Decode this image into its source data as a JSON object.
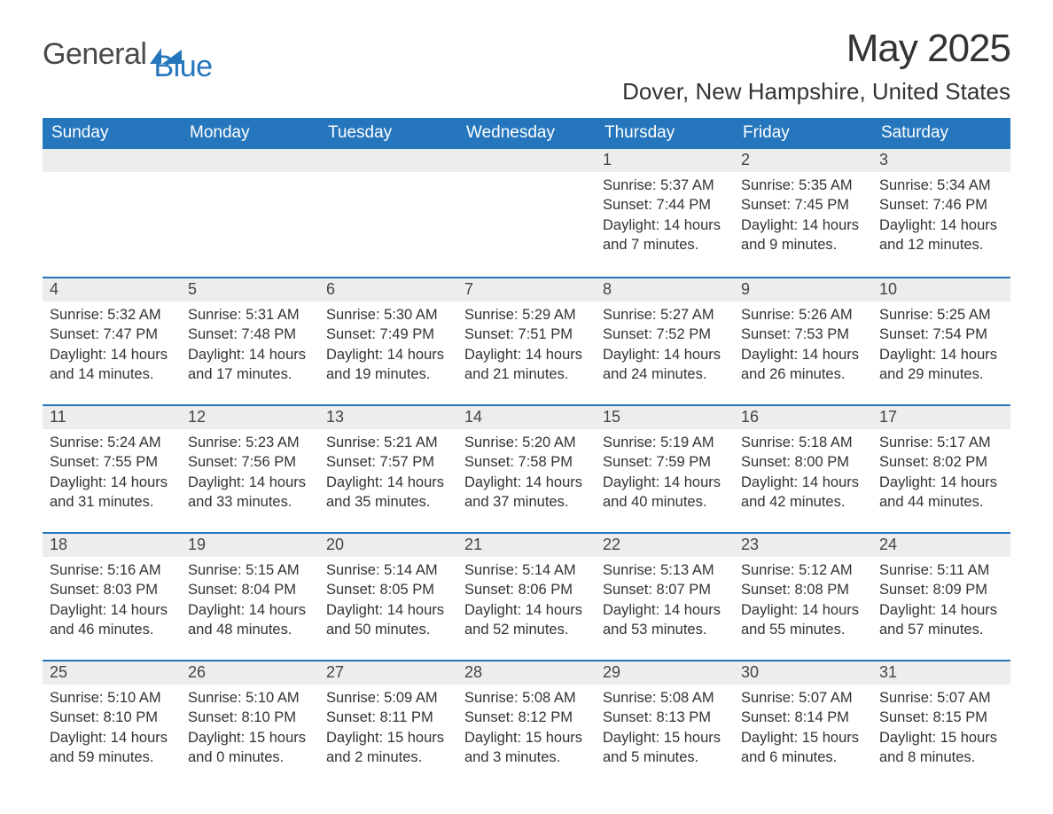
{
  "brand": {
    "part1": "General",
    "part2": "Blue"
  },
  "title": "May 2025",
  "location": "Dover, New Hampshire, United States",
  "colors": {
    "header_bg": "#2576bc",
    "header_text": "#ffffff",
    "daybar_bg": "#ededed",
    "daybar_border": "#2576bc",
    "body_text": "#333333",
    "brand_gray": "#4a4a4a",
    "brand_blue": "#2576bc",
    "page_bg": "#ffffff"
  },
  "typography": {
    "title_size_pt": 33,
    "location_size_pt": 20,
    "header_size_pt": 14,
    "body_size_pt": 12,
    "font_family": "Segoe UI / Arial"
  },
  "table": {
    "type": "calendar",
    "columns": [
      "Sunday",
      "Monday",
      "Tuesday",
      "Wednesday",
      "Thursday",
      "Friday",
      "Saturday"
    ],
    "weeks": [
      [
        null,
        null,
        null,
        null,
        {
          "n": "1",
          "sunrise": "5:37 AM",
          "sunset": "7:44 PM",
          "daylight": "14 hours and 7 minutes."
        },
        {
          "n": "2",
          "sunrise": "5:35 AM",
          "sunset": "7:45 PM",
          "daylight": "14 hours and 9 minutes."
        },
        {
          "n": "3",
          "sunrise": "5:34 AM",
          "sunset": "7:46 PM",
          "daylight": "14 hours and 12 minutes."
        }
      ],
      [
        {
          "n": "4",
          "sunrise": "5:32 AM",
          "sunset": "7:47 PM",
          "daylight": "14 hours and 14 minutes."
        },
        {
          "n": "5",
          "sunrise": "5:31 AM",
          "sunset": "7:48 PM",
          "daylight": "14 hours and 17 minutes."
        },
        {
          "n": "6",
          "sunrise": "5:30 AM",
          "sunset": "7:49 PM",
          "daylight": "14 hours and 19 minutes."
        },
        {
          "n": "7",
          "sunrise": "5:29 AM",
          "sunset": "7:51 PM",
          "daylight": "14 hours and 21 minutes."
        },
        {
          "n": "8",
          "sunrise": "5:27 AM",
          "sunset": "7:52 PM",
          "daylight": "14 hours and 24 minutes."
        },
        {
          "n": "9",
          "sunrise": "5:26 AM",
          "sunset": "7:53 PM",
          "daylight": "14 hours and 26 minutes."
        },
        {
          "n": "10",
          "sunrise": "5:25 AM",
          "sunset": "7:54 PM",
          "daylight": "14 hours and 29 minutes."
        }
      ],
      [
        {
          "n": "11",
          "sunrise": "5:24 AM",
          "sunset": "7:55 PM",
          "daylight": "14 hours and 31 minutes."
        },
        {
          "n": "12",
          "sunrise": "5:23 AM",
          "sunset": "7:56 PM",
          "daylight": "14 hours and 33 minutes."
        },
        {
          "n": "13",
          "sunrise": "5:21 AM",
          "sunset": "7:57 PM",
          "daylight": "14 hours and 35 minutes."
        },
        {
          "n": "14",
          "sunrise": "5:20 AM",
          "sunset": "7:58 PM",
          "daylight": "14 hours and 37 minutes."
        },
        {
          "n": "15",
          "sunrise": "5:19 AM",
          "sunset": "7:59 PM",
          "daylight": "14 hours and 40 minutes."
        },
        {
          "n": "16",
          "sunrise": "5:18 AM",
          "sunset": "8:00 PM",
          "daylight": "14 hours and 42 minutes."
        },
        {
          "n": "17",
          "sunrise": "5:17 AM",
          "sunset": "8:02 PM",
          "daylight": "14 hours and 44 minutes."
        }
      ],
      [
        {
          "n": "18",
          "sunrise": "5:16 AM",
          "sunset": "8:03 PM",
          "daylight": "14 hours and 46 minutes."
        },
        {
          "n": "19",
          "sunrise": "5:15 AM",
          "sunset": "8:04 PM",
          "daylight": "14 hours and 48 minutes."
        },
        {
          "n": "20",
          "sunrise": "5:14 AM",
          "sunset": "8:05 PM",
          "daylight": "14 hours and 50 minutes."
        },
        {
          "n": "21",
          "sunrise": "5:14 AM",
          "sunset": "8:06 PM",
          "daylight": "14 hours and 52 minutes."
        },
        {
          "n": "22",
          "sunrise": "5:13 AM",
          "sunset": "8:07 PM",
          "daylight": "14 hours and 53 minutes."
        },
        {
          "n": "23",
          "sunrise": "5:12 AM",
          "sunset": "8:08 PM",
          "daylight": "14 hours and 55 minutes."
        },
        {
          "n": "24",
          "sunrise": "5:11 AM",
          "sunset": "8:09 PM",
          "daylight": "14 hours and 57 minutes."
        }
      ],
      [
        {
          "n": "25",
          "sunrise": "5:10 AM",
          "sunset": "8:10 PM",
          "daylight": "14 hours and 59 minutes."
        },
        {
          "n": "26",
          "sunrise": "5:10 AM",
          "sunset": "8:10 PM",
          "daylight": "15 hours and 0 minutes."
        },
        {
          "n": "27",
          "sunrise": "5:09 AM",
          "sunset": "8:11 PM",
          "daylight": "15 hours and 2 minutes."
        },
        {
          "n": "28",
          "sunrise": "5:08 AM",
          "sunset": "8:12 PM",
          "daylight": "15 hours and 3 minutes."
        },
        {
          "n": "29",
          "sunrise": "5:08 AM",
          "sunset": "8:13 PM",
          "daylight": "15 hours and 5 minutes."
        },
        {
          "n": "30",
          "sunrise": "5:07 AM",
          "sunset": "8:14 PM",
          "daylight": "15 hours and 6 minutes."
        },
        {
          "n": "31",
          "sunrise": "5:07 AM",
          "sunset": "8:15 PM",
          "daylight": "15 hours and 8 minutes."
        }
      ]
    ],
    "labels": {
      "sunrise": "Sunrise: ",
      "sunset": "Sunset: ",
      "daylight": "Daylight: "
    }
  }
}
